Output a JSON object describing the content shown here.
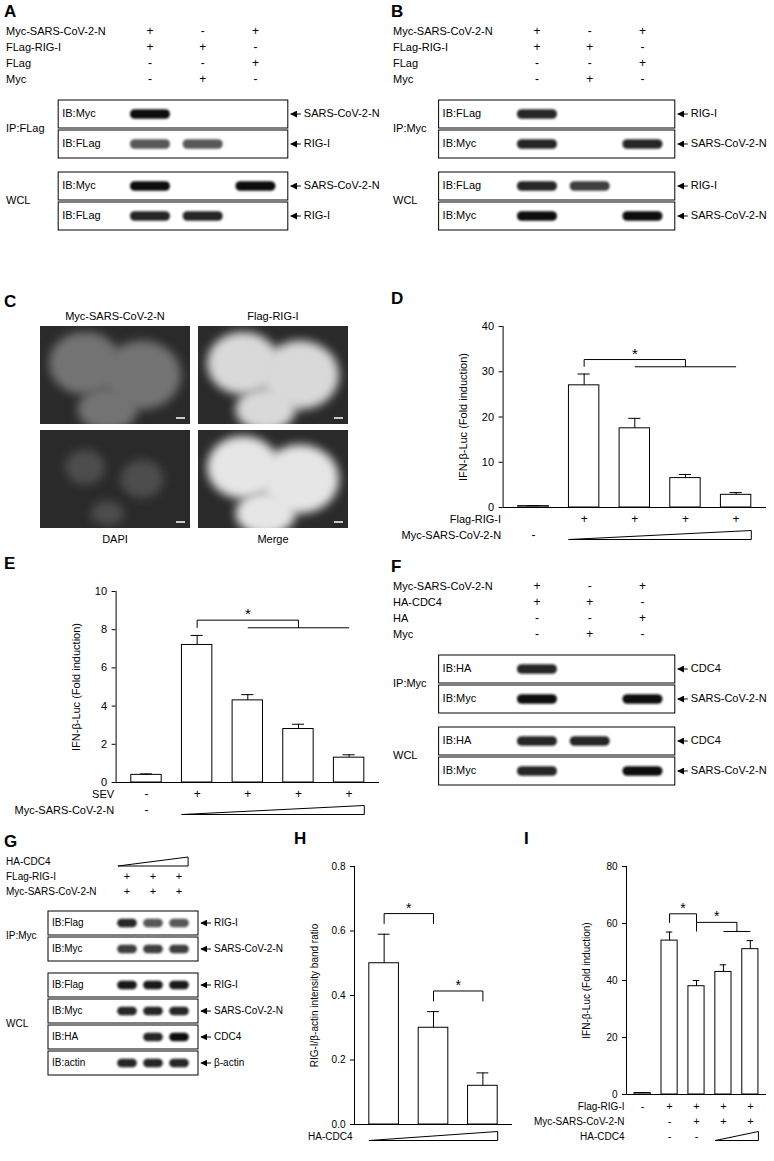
{
  "chart_data": [
    {
      "panel_label": "D",
      "type": "bar",
      "ylabel": "IFN-β-Luc (Fold induction)",
      "categories": [
        null,
        null,
        null,
        null,
        null
      ],
      "values": [
        0.3,
        27,
        17.5,
        6.5,
        2.8
      ],
      "errors": [
        0.1,
        2.5,
        2.2,
        0.8,
        0.5
      ],
      "color": "#ffffff",
      "ylim": [
        0,
        40
      ],
      "yticks": [
        0,
        10,
        20,
        30,
        40
      ],
      "conditions": [
        {
          "label": "Flag-RIG-I",
          "signs": [
            null,
            "+",
            "+",
            "+",
            "+"
          ]
        },
        {
          "label": "Myc-SARS-CoV-2-N",
          "signs": [
            "-",
            null,
            null,
            null,
            null
          ],
          "wedge": [
            1,
            4
          ]
        }
      ],
      "significance": [
        {
          "from": 1,
          "to": [
            2,
            4
          ],
          "label": "*"
        }
      ]
    },
    {
      "panel_label": "E",
      "type": "bar",
      "ylabel": "IFN-β-Luc (Fold induction)",
      "categories": [
        null,
        null,
        null,
        null,
        null
      ],
      "values": [
        0.4,
        7.2,
        4.3,
        2.8,
        1.3
      ],
      "errors": [
        0.05,
        0.5,
        0.3,
        0.25,
        0.15
      ],
      "color": "#ffffff",
      "ylim": [
        0,
        10
      ],
      "yticks": [
        0,
        2,
        4,
        6,
        8,
        10
      ],
      "conditions": [
        {
          "label": "SEV",
          "signs": [
            "-",
            "+",
            "+",
            "+",
            "+"
          ]
        },
        {
          "label": "Myc-SARS-CoV-2-N",
          "signs": [
            "-",
            null,
            null,
            null,
            null
          ],
          "wedge": [
            1,
            4
          ]
        }
      ],
      "significance": [
        {
          "from": 1,
          "to": [
            2,
            4
          ],
          "label": "*"
        }
      ]
    },
    {
      "panel_label": "H",
      "type": "bar",
      "ylabel": "RIG-I/β-actin intensity band ratio",
      "categories": [
        null,
        null,
        null
      ],
      "values": [
        0.5,
        0.3,
        0.12
      ],
      "errors": [
        0.09,
        0.05,
        0.04
      ],
      "color": "#ffffff",
      "ylim": [
        0,
        0.8
      ],
      "yticks": [
        {
          "value": 0,
          "label": "0.0"
        },
        {
          "value": 0.2,
          "label": "0.2"
        },
        {
          "value": 0.4,
          "label": "0.4"
        },
        {
          "value": 0.6,
          "label": "0.6"
        },
        {
          "value": 0.8,
          "label": "0.8"
        }
      ],
      "conditions": [
        {
          "label": "HA-CDC4",
          "signs": [
            null,
            null,
            null
          ],
          "wedge": [
            0,
            2
          ]
        }
      ],
      "significance": [
        {
          "from": 0,
          "to": [
            1,
            1
          ],
          "label": "*"
        },
        {
          "from": 1,
          "to": [
            2,
            2
          ],
          "label": "*"
        }
      ]
    },
    {
      "panel_label": "I",
      "type": "bar",
      "ylabel": "IFN-β-Luc (Fold induction)",
      "categories": [
        null,
        null,
        null,
        null,
        null
      ],
      "values": [
        0.5,
        54,
        38,
        43,
        51
      ],
      "errors": [
        0.2,
        3,
        2,
        2.5,
        3
      ],
      "color": "#ffffff",
      "ylim": [
        0,
        80
      ],
      "yticks": [
        0,
        20,
        40,
        60,
        80
      ],
      "conditions": [
        {
          "label": "Flag-RIG-I",
          "signs": [
            "-",
            "+",
            "+",
            "+",
            "+"
          ]
        },
        {
          "label": "Myc-SARS-CoV-2-N",
          "signs": [
            null,
            "-",
            "+",
            "+",
            "+"
          ]
        },
        {
          "label": "HA-CDC4",
          "signs": [
            null,
            "-",
            "-",
            null,
            null
          ],
          "wedge": [
            3,
            4
          ]
        }
      ],
      "significance": [
        {
          "from": 1,
          "to": [
            2,
            2
          ],
          "label": "*"
        },
        {
          "from": 2,
          "to": [
            3,
            4
          ],
          "label": "*"
        }
      ]
    }
  ],
  "blots": [
    {
      "panel_label": "A",
      "conditions": [
        {
          "label": "Myc-SARS-CoV-2-N",
          "signs": [
            "+",
            "-",
            "+"
          ]
        },
        {
          "label": "FLag-RIG-I",
          "signs": [
            "+",
            "+",
            "-"
          ]
        },
        {
          "label": "FLag",
          "signs": [
            "-",
            "-",
            "+"
          ]
        },
        {
          "label": "Myc",
          "signs": [
            "-",
            "+",
            "-"
          ]
        }
      ],
      "groups": [
        {
          "label": "IP:FLag",
          "rows": [
            {
              "ib": "IB:Myc",
              "target": "SARS-CoV-2-N",
              "bands": [
                1,
                0,
                0
              ]
            },
            {
              "ib": "IB:FLag",
              "target": "RIG-I",
              "bands": [
                0.7,
                0.7,
                0
              ]
            }
          ]
        },
        {
          "label": "WCL",
          "rows": [
            {
              "ib": "IB:Myc",
              "target": "SARS-CoV-2-N",
              "bands": [
                1,
                0,
                1
              ]
            },
            {
              "ib": "IB:FLag",
              "target": "RIG-I",
              "bands": [
                0.9,
                0.9,
                0
              ]
            }
          ]
        }
      ]
    },
    {
      "panel_label": "B",
      "conditions": [
        {
          "label": "Myc-SARS-CoV-2-N",
          "signs": [
            "+",
            "-",
            "+"
          ]
        },
        {
          "label": "FLag-RIG-I",
          "signs": [
            "+",
            "+",
            "-"
          ]
        },
        {
          "label": "FLag",
          "signs": [
            "-",
            "-",
            "+"
          ]
        },
        {
          "label": "Myc",
          "signs": [
            "-",
            "+",
            "-"
          ]
        }
      ],
      "groups": [
        {
          "label": "IP:Myc",
          "rows": [
            {
              "ib": "IB:FLag",
              "target": "RIG-I",
              "bands": [
                0.9,
                0,
                0
              ]
            },
            {
              "ib": "IB:Myc",
              "target": "SARS-CoV-2-N",
              "bands": [
                0.9,
                0,
                0.9
              ]
            }
          ]
        },
        {
          "label": "WCL",
          "rows": [
            {
              "ib": "IB:FLag",
              "target": "RIG-I",
              "bands": [
                0.9,
                0.8,
                0
              ]
            },
            {
              "ib": "IB:Myc",
              "target": "SARS-CoV-2-N",
              "bands": [
                1,
                0,
                1
              ]
            }
          ]
        }
      ]
    },
    {
      "panel_label": "F",
      "conditions": [
        {
          "label": "Myc-SARS-CoV-2-N",
          "signs": [
            "+",
            "-",
            "+"
          ]
        },
        {
          "label": "HA-CDC4",
          "signs": [
            "+",
            "+",
            "-"
          ]
        },
        {
          "label": "HA",
          "signs": [
            "-",
            "-",
            "+"
          ]
        },
        {
          "label": "Myc",
          "signs": [
            "-",
            "+",
            "-"
          ]
        }
      ],
      "groups": [
        {
          "label": "IP:Myc",
          "rows": [
            {
              "ib": "IB:HA",
              "target": "CDC4",
              "bands": [
                0.9,
                0,
                0
              ]
            },
            {
              "ib": "IB:Myc",
              "target": "SARS-CoV-2-N",
              "bands": [
                1,
                0,
                1
              ]
            }
          ]
        },
        {
          "label": "WCL",
          "rows": [
            {
              "ib": "IB:HA",
              "target": "CDC4",
              "bands": [
                0.9,
                0.9,
                0
              ]
            },
            {
              "ib": "IB:Myc",
              "target": "SARS-CoV-2-N",
              "bands": [
                0.9,
                0,
                1
              ]
            }
          ]
        }
      ]
    },
    {
      "panel_label": "G",
      "conditions": [
        {
          "label": "HA-CDC4",
          "signs": [
            null,
            null,
            null
          ],
          "wedge": [
            0,
            2
          ]
        },
        {
          "label": "FLag-RIG-I",
          "signs": [
            "+",
            "+",
            "+"
          ]
        },
        {
          "label": "Myc-SARS-CoV-2-N",
          "signs": [
            "+",
            "+",
            "+"
          ]
        }
      ],
      "groups": [
        {
          "label": "IP:Myc",
          "rows": [
            {
              "ib": "IB:Flag",
              "target": "RIG-I",
              "bands": [
                0.9,
                0.7,
                0.7
              ]
            },
            {
              "ib": "IB:Myc",
              "target": "SARS-CoV-2-N",
              "bands": [
                0.8,
                0.8,
                0.8
              ]
            }
          ]
        },
        {
          "label": "WCL",
          "rows": [
            {
              "ib": "IB:Flag",
              "target": "RIG-I",
              "bands": [
                0.95,
                0.95,
                0.95
              ]
            },
            {
              "ib": "IB:Myc",
              "target": "SARS-CoV-2-N",
              "bands": [
                0.9,
                0.9,
                0.9
              ]
            },
            {
              "ib": "IB:HA",
              "target": "CDC4",
              "bands": [
                0,
                0.9,
                1
              ]
            },
            {
              "ib": "IB:actin",
              "target": "β-actin",
              "bands": [
                0.9,
                0.9,
                0.9
              ]
            }
          ]
        }
      ]
    }
  ],
  "microscopy": {
    "panel_label": "C",
    "images": [
      {
        "label": "Myc-SARS-CoV-2-N"
      },
      {
        "label": "Flag-RIG-I"
      },
      {
        "label": "DAPI"
      },
      {
        "label": "Merge"
      }
    ]
  }
}
